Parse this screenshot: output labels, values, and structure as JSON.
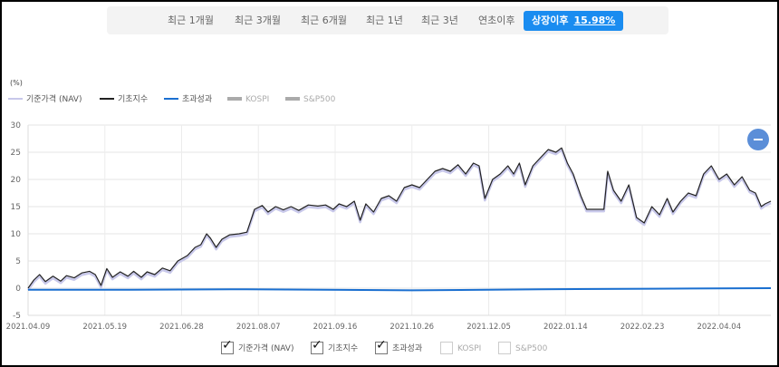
{
  "tabs": [
    {
      "label": "최근 1개월",
      "active": false
    },
    {
      "label": "최근 3개월",
      "active": false
    },
    {
      "label": "최근 6개월",
      "active": false
    },
    {
      "label": "최근 1년",
      "active": false
    },
    {
      "label": "최근 3년",
      "active": false
    },
    {
      "label": "연초이후",
      "active": false
    },
    {
      "label": "상장이후",
      "active": true,
      "return": "15.98%"
    }
  ],
  "unit_label": "(%)",
  "legend": [
    {
      "name": "기준가격 (NAV)",
      "color": "#c8c8ea",
      "enabled": true
    },
    {
      "name": "기초지수",
      "color": "#222222",
      "enabled": true
    },
    {
      "name": "초과성과",
      "color": "#1a6fd0",
      "enabled": true
    },
    {
      "name": "KOSPI",
      "color": "#aaaaaa",
      "enabled": false
    },
    {
      "name": "S&P500",
      "color": "#aaaaaa",
      "enabled": false
    }
  ],
  "checkboxes": [
    {
      "label": "기준가격 (NAV)",
      "checked": true
    },
    {
      "label": "기초지수",
      "checked": true
    },
    {
      "label": "초과성과",
      "checked": true
    },
    {
      "label": "KOSPI",
      "checked": false
    },
    {
      "label": "S&P500",
      "checked": false
    }
  ],
  "chart_data": {
    "type": "line",
    "ylim": [
      -5,
      30
    ],
    "yticks": [
      -5,
      0,
      5,
      10,
      15,
      20,
      25,
      30
    ],
    "xticks": [
      "2021.04.09",
      "2021.05.19",
      "2021.06.28",
      "2021.08.07",
      "2021.09.16",
      "2021.10.26",
      "2021.12.05",
      "2022.01.14",
      "2022.02.23",
      "2022.04.04"
    ],
    "x_start": "2021.04.09",
    "x_end": "2022.05.01",
    "grid": true,
    "series": [
      {
        "name": "기초지수",
        "color": "#222222",
        "points": [
          [
            "2021.04.09",
            0.0
          ],
          [
            "2021.04.12",
            1.5
          ],
          [
            "2021.04.15",
            2.5
          ],
          [
            "2021.04.18",
            1.2
          ],
          [
            "2021.04.22",
            2.2
          ],
          [
            "2021.04.26",
            1.3
          ],
          [
            "2021.04.29",
            2.3
          ],
          [
            "2021.05.03",
            1.9
          ],
          [
            "2021.05.07",
            2.8
          ],
          [
            "2021.05.11",
            3.1
          ],
          [
            "2021.05.14",
            2.5
          ],
          [
            "2021.05.17",
            0.5
          ],
          [
            "2021.05.20",
            3.6
          ],
          [
            "2021.05.23",
            2.0
          ],
          [
            "2021.05.27",
            3.0
          ],
          [
            "2021.05.31",
            2.2
          ],
          [
            "2021.06.03",
            3.1
          ],
          [
            "2021.06.07",
            2.0
          ],
          [
            "2021.06.10",
            3.0
          ],
          [
            "2021.06.14",
            2.5
          ],
          [
            "2021.06.18",
            3.7
          ],
          [
            "2021.06.22",
            3.2
          ],
          [
            "2021.06.26",
            5.0
          ],
          [
            "2021.07.01",
            6.0
          ],
          [
            "2021.07.05",
            7.5
          ],
          [
            "2021.07.08",
            8.0
          ],
          [
            "2021.07.11",
            10.0
          ],
          [
            "2021.07.13",
            9.2
          ],
          [
            "2021.07.16",
            7.5
          ],
          [
            "2021.07.19",
            9.0
          ],
          [
            "2021.07.23",
            9.8
          ],
          [
            "2021.07.28",
            10.0
          ],
          [
            "2021.08.01",
            10.3
          ],
          [
            "2021.08.05",
            14.5
          ],
          [
            "2021.08.09",
            15.2
          ],
          [
            "2021.08.12",
            14.0
          ],
          [
            "2021.08.16",
            15.0
          ],
          [
            "2021.08.20",
            14.4
          ],
          [
            "2021.08.24",
            15.0
          ],
          [
            "2021.08.28",
            14.3
          ],
          [
            "2021.09.02",
            15.3
          ],
          [
            "2021.09.07",
            15.1
          ],
          [
            "2021.09.11",
            15.3
          ],
          [
            "2021.09.15",
            14.5
          ],
          [
            "2021.09.18",
            15.5
          ],
          [
            "2021.09.22",
            15.0
          ],
          [
            "2021.09.26",
            16.0
          ],
          [
            "2021.09.29",
            12.5
          ],
          [
            "2021.10.02",
            15.5
          ],
          [
            "2021.10.06",
            14.0
          ],
          [
            "2021.10.10",
            16.5
          ],
          [
            "2021.10.14",
            17.0
          ],
          [
            "2021.10.18",
            16.0
          ],
          [
            "2021.10.22",
            18.5
          ],
          [
            "2021.10.26",
            19.0
          ],
          [
            "2021.10.30",
            18.5
          ],
          [
            "2021.11.03",
            20.0
          ],
          [
            "2021.11.07",
            21.5
          ],
          [
            "2021.11.11",
            22.0
          ],
          [
            "2021.11.15",
            21.5
          ],
          [
            "2021.11.19",
            22.7
          ],
          [
            "2021.11.23",
            21.0
          ],
          [
            "2021.11.27",
            23.0
          ],
          [
            "2021.11.30",
            22.5
          ],
          [
            "2021.12.03",
            16.5
          ],
          [
            "2021.12.07",
            20.0
          ],
          [
            "2021.12.11",
            21.0
          ],
          [
            "2021.12.15",
            22.5
          ],
          [
            "2021.12.18",
            21.0
          ],
          [
            "2021.12.21",
            23.0
          ],
          [
            "2021.12.24",
            19.0
          ],
          [
            "2021.12.28",
            22.5
          ],
          [
            "2022.01.01",
            24.0
          ],
          [
            "2022.01.05",
            25.5
          ],
          [
            "2022.01.09",
            25.0
          ],
          [
            "2022.01.12",
            25.8
          ],
          [
            "2022.01.15",
            23.0
          ],
          [
            "2022.01.18",
            21.0
          ],
          [
            "2022.01.22",
            17.0
          ],
          [
            "2022.01.25",
            14.5
          ],
          [
            "2022.01.30",
            14.5
          ],
          [
            "2022.02.03",
            14.5
          ],
          [
            "2022.02.05",
            21.5
          ],
          [
            "2022.02.08",
            18.0
          ],
          [
            "2022.02.12",
            16.0
          ],
          [
            "2022.02.16",
            19.0
          ],
          [
            "2022.02.20",
            13.0
          ],
          [
            "2022.02.24",
            12.0
          ],
          [
            "2022.02.28",
            15.0
          ],
          [
            "2022.03.04",
            13.5
          ],
          [
            "2022.03.08",
            16.5
          ],
          [
            "2022.03.11",
            14.0
          ],
          [
            "2022.03.15",
            16.0
          ],
          [
            "2022.03.19",
            17.5
          ],
          [
            "2022.03.23",
            17.0
          ],
          [
            "2022.03.27",
            21.0
          ],
          [
            "2022.03.31",
            22.5
          ],
          [
            "2022.04.04",
            20.0
          ],
          [
            "2022.04.08",
            21.0
          ],
          [
            "2022.04.12",
            19.0
          ],
          [
            "2022.04.16",
            20.5
          ],
          [
            "2022.04.20",
            18.0
          ],
          [
            "2022.04.23",
            17.5
          ],
          [
            "2022.04.26",
            15.0
          ],
          [
            "2022.04.28",
            15.5
          ],
          [
            "2022.05.01",
            16.0
          ]
        ]
      },
      {
        "name": "기준가격 (NAV)",
        "color": "#c8c8ea",
        "offset_of": "기초지수",
        "offset": -0.35
      },
      {
        "name": "초과성과",
        "color": "#1a6fd0",
        "points": [
          [
            "2021.04.09",
            -0.3
          ],
          [
            "2021.06.01",
            -0.3
          ],
          [
            "2021.08.01",
            -0.2
          ],
          [
            "2021.10.26",
            -0.4
          ],
          [
            "2022.01.01",
            -0.2
          ],
          [
            "2022.03.01",
            -0.1
          ],
          [
            "2022.05.01",
            0.0
          ]
        ]
      }
    ]
  }
}
